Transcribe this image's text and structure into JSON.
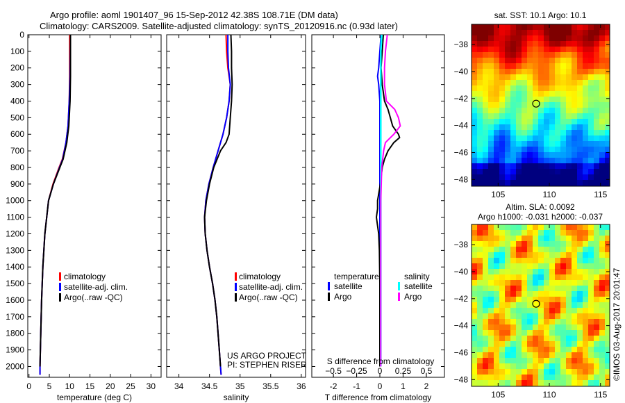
{
  "title": {
    "line1": "Argo profile: aoml 1901407_96 15-Sep-2012 42.38S 108.71E (DM data)",
    "line2": "Climatology: CARS2009. Satellite-adjusted climatology: synTS_20120916.nc (0.93d later)"
  },
  "colors": {
    "climatology": "#ff0000",
    "satellite": "#0000ff",
    "argo": "#000000",
    "sal_satellite": "#00ffff",
    "sal_argo": "#ff00ff"
  },
  "chart_data": [
    {
      "type": "line",
      "id": "temperature",
      "xlabel": "temperature (deg C)",
      "ylabel": "",
      "xlim": [
        -0.3,
        32.5
      ],
      "ylim": [
        0,
        2065
      ],
      "xticks": [
        0,
        5,
        10,
        15,
        20,
        25,
        30
      ],
      "yticks": [
        0,
        100,
        200,
        300,
        400,
        500,
        600,
        700,
        800,
        900,
        1000,
        1100,
        1200,
        1300,
        1400,
        1500,
        1600,
        1700,
        1800,
        1900,
        2000
      ],
      "legend": [
        "climatology",
        "satellite-adj. clim.",
        "Argo(..raw -QC)"
      ],
      "legend_placement": "bottom-right",
      "series": [
        {
          "name": "climatology",
          "depth": [
            0,
            250,
            400,
            550,
            650,
            750,
            800,
            900,
            1000,
            1200,
            1400,
            1600,
            1800,
            2000,
            2050
          ],
          "values": [
            10.0,
            10.0,
            9.9,
            9.6,
            9.1,
            8.2,
            7.4,
            5.9,
            4.8,
            3.9,
            3.4,
            3.1,
            2.9,
            2.7,
            2.7
          ]
        },
        {
          "name": "satellite-adj. clim.",
          "depth": [
            0,
            250,
            400,
            550,
            650,
            750,
            800,
            900,
            1000,
            1200,
            1400,
            1600,
            1800,
            2000,
            2050
          ],
          "values": [
            10.2,
            10.1,
            9.9,
            9.6,
            9.1,
            8.3,
            7.5,
            6.0,
            4.8,
            3.9,
            3.4,
            3.1,
            2.9,
            2.7,
            2.7
          ]
        },
        {
          "name": "Argo(..raw -QC)",
          "depth": [
            0,
            250,
            400,
            550,
            650,
            750,
            800,
            900,
            1000,
            1200,
            1400,
            1600,
            1800,
            2000
          ],
          "values": [
            10.2,
            10.2,
            10.1,
            9.8,
            9.3,
            8.4,
            7.6,
            6.0,
            4.8,
            3.9,
            3.4,
            3.1,
            2.9,
            2.7
          ]
        }
      ]
    },
    {
      "type": "line",
      "id": "salinity",
      "xlabel": "salinity",
      "xlim": [
        33.8,
        36.07
      ],
      "ylim": [
        0,
        2065
      ],
      "xticks": [
        34,
        34.5,
        35,
        35.5,
        36
      ],
      "legend": [
        "climatology",
        "satellite-adj. clim.",
        "Argo(..raw -QC)"
      ],
      "legend_placement": "bottom-right",
      "annotations": [
        "US ARGO PROJECT",
        "PI: STEPHEN RISER"
      ],
      "series": [
        {
          "name": "climatology",
          "depth": [
            0,
            100,
            200,
            300,
            400,
            500,
            600,
            700,
            800,
            900,
            1000,
            1100,
            1200,
            1300,
            1400,
            1500,
            1600,
            1700,
            1800,
            1900,
            2000,
            2050
          ],
          "values": [
            34.77,
            34.78,
            34.8,
            34.84,
            34.82,
            34.78,
            34.72,
            34.64,
            34.56,
            34.49,
            34.44,
            34.42,
            34.43,
            34.46,
            34.5,
            34.55,
            34.59,
            34.62,
            34.64,
            34.66,
            34.68,
            34.69
          ]
        },
        {
          "name": "satellite-adj. clim.",
          "depth": [
            0,
            100,
            200,
            300,
            400,
            500,
            600,
            700,
            800,
            900,
            1000,
            1100,
            1200,
            1300,
            1400,
            1500,
            1600,
            1700,
            1800,
            1900,
            2000,
            2050
          ],
          "values": [
            34.8,
            34.8,
            34.81,
            34.84,
            34.82,
            34.78,
            34.72,
            34.64,
            34.56,
            34.49,
            34.44,
            34.42,
            34.43,
            34.46,
            34.5,
            34.55,
            34.59,
            34.62,
            34.64,
            34.66,
            34.68,
            34.69
          ]
        },
        {
          "name": "Argo(..raw -QC)",
          "depth": [
            0,
            100,
            200,
            300,
            400,
            500,
            600,
            650,
            700,
            800,
            900,
            1000,
            1100,
            1200,
            1300,
            1400,
            1500,
            1600,
            1700,
            1800,
            1900,
            2000
          ],
          "values": [
            34.85,
            34.86,
            34.86,
            34.87,
            34.86,
            34.84,
            34.82,
            34.77,
            34.68,
            34.57,
            34.5,
            34.45,
            34.42,
            34.43,
            34.46,
            34.5,
            34.55,
            34.59,
            34.62,
            34.64,
            34.66,
            34.68
          ]
        }
      ]
    },
    {
      "type": "line",
      "id": "differences",
      "xlabel": "T difference from climatology",
      "xlabel2": "S difference from climatology",
      "xlim": [
        -2.93,
        2.78
      ],
      "xticks": [
        -2,
        -1,
        0,
        1,
        2
      ],
      "xticks_s": [
        -0.5,
        -0.25,
        0,
        0.25,
        0.5
      ],
      "ylim": [
        0,
        2065
      ],
      "legend_temperature": {
        "heading": "temperature",
        "items": [
          "satellite",
          "Argo"
        ]
      },
      "legend_salinity": {
        "heading": "salinity",
        "items": [
          "satellite",
          "Argo"
        ]
      },
      "series": [
        {
          "name": "temperature satellite",
          "axis": "T",
          "depth": [
            0,
            100,
            200,
            250,
            300,
            400,
            600,
            800,
            1000,
            1500,
            2000
          ],
          "values": [
            0.05,
            0.0,
            -0.05,
            -0.1,
            -0.05,
            0,
            0,
            0,
            0,
            0,
            0
          ]
        },
        {
          "name": "temperature Argo",
          "axis": "T",
          "depth": [
            0,
            100,
            200,
            300,
            400,
            450,
            500,
            550,
            600,
            620,
            650,
            700,
            750,
            800,
            900,
            1000,
            1050,
            1100,
            1200,
            1300,
            1500,
            2000
          ],
          "values": [
            0.15,
            0.1,
            0.05,
            0.1,
            0.2,
            0.35,
            0.45,
            0.55,
            0.8,
            0.85,
            0.6,
            0.35,
            0.2,
            0.1,
            0.02,
            -0.1,
            -0.1,
            -0.15,
            -0.05,
            -0.02,
            0,
            0
          ]
        },
        {
          "name": "salinity satellite",
          "axis": "S",
          "depth": [
            0,
            100,
            200,
            300,
            400,
            600,
            800,
            1000,
            1500,
            2000
          ],
          "values": [
            0.02,
            0.01,
            0.01,
            0.01,
            0.01,
            0.01,
            0.01,
            0.01,
            0.01,
            0.01
          ]
        },
        {
          "name": "salinity Argo",
          "axis": "S",
          "depth": [
            0,
            50,
            100,
            200,
            300,
            400,
            450,
            500,
            550,
            600,
            650,
            700,
            800,
            1000,
            1200,
            1500,
            2000
          ],
          "values": [
            0.08,
            0.07,
            0.06,
            0.05,
            0.05,
            0.07,
            0.16,
            0.2,
            0.22,
            0.15,
            0.06,
            0.04,
            0.02,
            0.01,
            0.01,
            0.01,
            0.01
          ]
        }
      ]
    },
    {
      "type": "heatmap",
      "id": "sst-map",
      "title": "sat. SST: 10.1  Argo: 10.1",
      "xlim": [
        102.4,
        115.9
      ],
      "ylim": [
        -48.5,
        -36.5
      ],
      "xticks": [
        105,
        110,
        115
      ],
      "yticks": [
        -38,
        -40,
        -42,
        -44,
        -46,
        -48
      ],
      "marker": {
        "lon": 108.71,
        "lat": -42.38
      }
    },
    {
      "type": "heatmap",
      "id": "sla-map",
      "title": "Altim. SLA: 0.0092",
      "subtitle": "Argo h1000: -0.031 h2000: -0.037",
      "xlim": [
        102.4,
        115.9
      ],
      "ylim": [
        -48.5,
        -36.5
      ],
      "xticks": [
        105,
        110,
        115
      ],
      "yticks": [
        -38,
        -40,
        -42,
        -44,
        -46,
        -48
      ],
      "marker": {
        "lon": 108.71,
        "lat": -42.38
      },
      "side_label": "©IMOS 03-Aug-2017 20:01:47"
    }
  ]
}
